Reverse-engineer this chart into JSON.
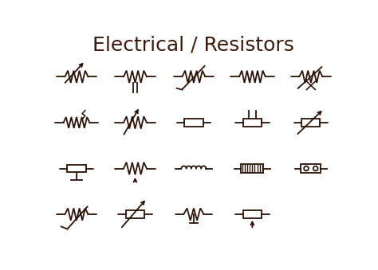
{
  "title": "Electrical / Resistors",
  "title_fontsize": 18,
  "title_color": "#3a1a0a",
  "bg_color": "#ffffff",
  "line_color": "#2a1208",
  "line_width": 1.3,
  "fig_width": 4.74,
  "fig_height": 3.39,
  "cols": [
    0.95,
    2.85,
    4.75,
    6.65,
    8.55
  ],
  "rows": [
    6.55,
    5.05,
    3.55,
    2.05
  ],
  "xlim": [
    0,
    9.5
  ],
  "ylim": [
    1.2,
    8.0
  ]
}
